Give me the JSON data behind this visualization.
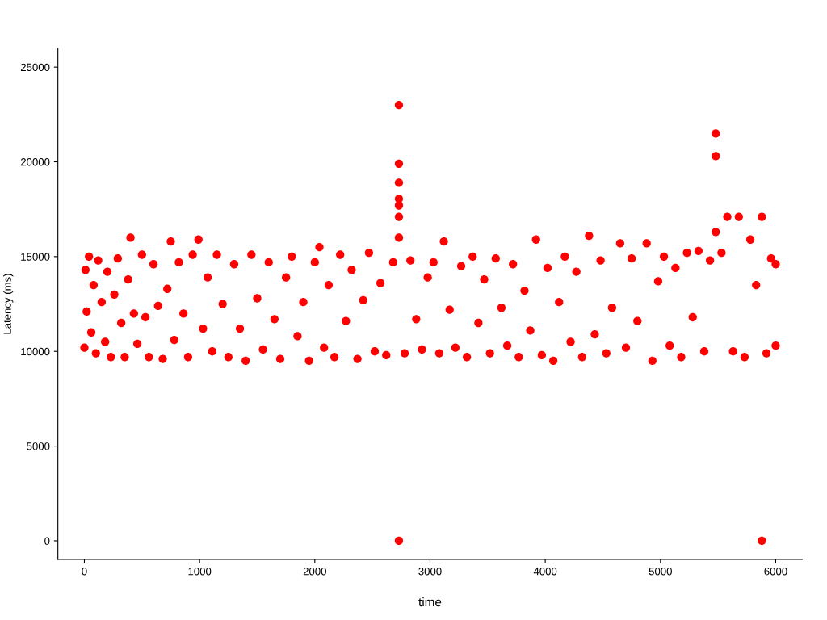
{
  "chart_data": {
    "type": "scatter",
    "xlabel": "time",
    "ylabel": "Latency (ms)",
    "xlim": [
      -230,
      6230
    ],
    "ylim": [
      -980,
      25980
    ],
    "xticks": [
      0,
      1000,
      2000,
      3000,
      4000,
      5000,
      6000
    ],
    "yticks": [
      0,
      5000,
      10000,
      15000,
      20000,
      25000
    ],
    "grid": false,
    "marker": "circle",
    "series": [
      {
        "color": "#ff0000",
        "x": [
          0,
          10,
          20,
          40,
          60,
          80,
          100,
          120,
          150,
          180,
          200,
          230,
          260,
          290,
          320,
          350,
          380,
          400,
          430,
          460,
          500,
          530,
          560,
          600,
          640,
          680,
          720,
          750,
          780,
          820,
          860,
          900,
          940,
          990,
          1030,
          1070,
          1110,
          1150,
          1200,
          1250,
          1300,
          1350,
          1400,
          1450,
          1500,
          1550,
          1600,
          1650,
          1700,
          1750,
          1800,
          1850,
          1900,
          1950,
          2000,
          2040,
          2080,
          2120,
          2170,
          2220,
          2270,
          2320,
          2370,
          2420,
          2470,
          2520,
          2570,
          2620,
          2680,
          2730,
          2730,
          2730,
          2730,
          2730,
          2730,
          2730,
          2730,
          2780,
          2830,
          2880,
          2930,
          2980,
          3030,
          3080,
          3120,
          3170,
          3220,
          3270,
          3320,
          3370,
          3420,
          3470,
          3520,
          3570,
          3620,
          3670,
          3720,
          3770,
          3820,
          3870,
          3920,
          3970,
          4020,
          4070,
          4120,
          4170,
          4220,
          4270,
          4320,
          4380,
          4430,
          4480,
          4530,
          4580,
          4650,
          4700,
          4750,
          4800,
          4880,
          4930,
          4980,
          5030,
          5080,
          5130,
          5180,
          5230,
          5280,
          5330,
          5380,
          5430,
          5480,
          5480,
          5480,
          5530,
          5580,
          5630,
          5680,
          5730,
          5780,
          5830,
          5880,
          5880,
          5920,
          5960,
          6000,
          6000
        ],
        "values": [
          10200,
          14300,
          12100,
          15000,
          11000,
          13500,
          9900,
          14800,
          12600,
          10500,
          14200,
          9700,
          13000,
          14900,
          11500,
          9700,
          13800,
          16000,
          12000,
          10400,
          15100,
          11800,
          9700,
          14600,
          12400,
          9600,
          13300,
          15800,
          10600,
          14700,
          12000,
          9700,
          15100,
          15900,
          11200,
          13900,
          10000,
          15100,
          12500,
          9700,
          14600,
          11200,
          9500,
          15100,
          12800,
          10100,
          14700,
          11700,
          9600,
          13900,
          15000,
          10800,
          12600,
          9500,
          14700,
          15500,
          10200,
          13500,
          9700,
          15100,
          11600,
          14300,
          9600,
          12700,
          15200,
          10000,
          13600,
          9800,
          14700,
          23000,
          19900,
          18900,
          18050,
          17700,
          17100,
          16000,
          0,
          9900,
          14800,
          11700,
          10100,
          13900,
          14700,
          9900,
          15800,
          12200,
          10200,
          14500,
          9700,
          15000,
          11500,
          13800,
          9900,
          14900,
          12300,
          10300,
          14600,
          9700,
          13200,
          11100,
          15900,
          9800,
          14400,
          9500,
          12600,
          15000,
          10500,
          14200,
          9700,
          16100,
          10900,
          14800,
          9900,
          12300,
          15700,
          10200,
          14900,
          11600,
          15700,
          9500,
          13700,
          15000,
          10300,
          14400,
          9700,
          15200,
          11800,
          15300,
          10000,
          14800,
          21500,
          20300,
          16300,
          15200,
          17100,
          10000,
          17100,
          9700,
          15900,
          13500,
          17100,
          0,
          9900,
          14900,
          10300,
          14600
        ]
      }
    ]
  }
}
